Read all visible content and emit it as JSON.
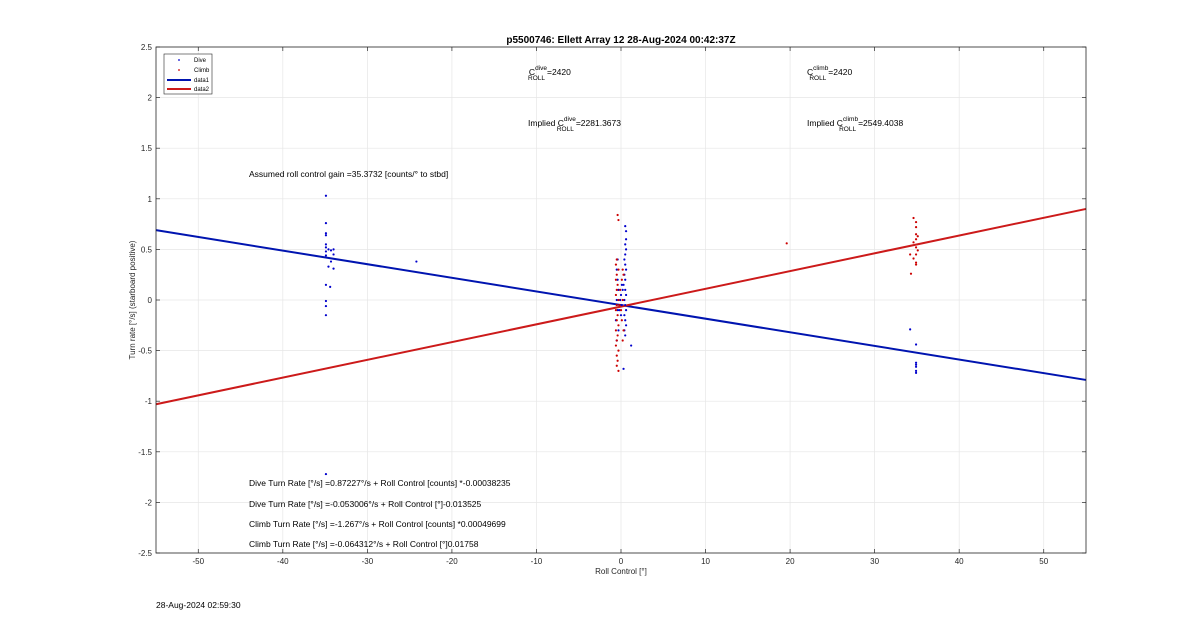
{
  "figure": {
    "footer_timestamp": "28-Aug-2024 02:59:30"
  },
  "colors": {
    "dive": "#0000cc",
    "climb": "#cc0000",
    "data1": "#0014b0",
    "data2": "#cc1a1a",
    "grid": "#e6e6e6",
    "axis": "#262626"
  },
  "chart_data": {
    "type": "scatter",
    "title": "p5500746: Ellett Array 12 28-Aug-2024 00:42:37Z",
    "xlabel": "Roll Control [°]",
    "ylabel": "Turn rate [°/s] (starboard positive)",
    "xlim": [
      -55,
      55
    ],
    "ylim": [
      -2.5,
      2.5
    ],
    "grid": true,
    "legend_position": "top-left",
    "x_ticks": [
      -50,
      -40,
      -30,
      -20,
      -10,
      0,
      10,
      20,
      30,
      40,
      50
    ],
    "y_ticks": [
      -2.5,
      -2,
      -1.5,
      -1,
      -0.5,
      0,
      0.5,
      1,
      1.5,
      2,
      2.5
    ],
    "x_tick_labels": [
      "-50",
      "-40",
      "-30",
      "-20",
      "-10",
      "0",
      "10",
      "20",
      "30",
      "40",
      "50"
    ],
    "y_tick_labels": [
      "-2.5",
      "-2",
      "-1.5",
      "-1",
      "-0.5",
      "0",
      "0.5",
      "1",
      "1.5",
      "2",
      "2.5"
    ],
    "legend": [
      {
        "label": "Dive",
        "kind": "marker",
        "color": "#0000cc"
      },
      {
        "label": "Climb",
        "kind": "marker",
        "color": "#cc0000"
      },
      {
        "label": "data1",
        "kind": "line",
        "color": "#0014b0"
      },
      {
        "label": "data2",
        "kind": "line",
        "color": "#cc1a1a"
      }
    ],
    "series": [
      {
        "name": "Dive",
        "kind": "scatter",
        "color": "#0000cc",
        "points": [
          [
            -34.9,
            1.03
          ],
          [
            -34.9,
            0.76
          ],
          [
            -34.9,
            0.66
          ],
          [
            -34.9,
            0.64
          ],
          [
            -34.9,
            0.55
          ],
          [
            -34.9,
            0.52
          ],
          [
            -34.9,
            0.48
          ],
          [
            -34.9,
            0.44
          ],
          [
            -34.6,
            0.5
          ],
          [
            -34.3,
            0.49
          ],
          [
            -34.0,
            0.5
          ],
          [
            -34.0,
            0.45
          ],
          [
            -34.3,
            0.38
          ],
          [
            -34.0,
            0.31
          ],
          [
            -34.6,
            0.33
          ],
          [
            -34.9,
            0.15
          ],
          [
            -34.4,
            0.13
          ],
          [
            -34.9,
            -0.01
          ],
          [
            -34.9,
            -0.06
          ],
          [
            -34.9,
            -0.15
          ],
          [
            -34.9,
            -1.72
          ],
          [
            -24.2,
            0.38
          ],
          [
            0.5,
            0.73
          ],
          [
            0.6,
            0.68
          ],
          [
            0.6,
            0.6
          ],
          [
            0.5,
            0.55
          ],
          [
            0.6,
            0.5
          ],
          [
            0.5,
            0.45
          ],
          [
            0.4,
            0.4
          ],
          [
            0.5,
            0.35
          ],
          [
            0.6,
            0.3
          ],
          [
            0.4,
            0.25
          ],
          [
            0.5,
            0.2
          ],
          [
            0.3,
            0.15
          ],
          [
            0.5,
            0.1
          ],
          [
            0.6,
            0.05
          ],
          [
            0.4,
            0.0
          ],
          [
            0.5,
            -0.05
          ],
          [
            0.6,
            -0.1
          ],
          [
            0.4,
            -0.15
          ],
          [
            0.5,
            -0.2
          ],
          [
            0.6,
            -0.25
          ],
          [
            0.4,
            -0.3
          ],
          [
            0.5,
            -0.35
          ],
          [
            -0.5,
            0.3
          ],
          [
            -0.4,
            0.2
          ],
          [
            -0.3,
            0.1
          ],
          [
            -0.5,
            0.0
          ],
          [
            -0.4,
            -0.1
          ],
          [
            -0.6,
            -0.2
          ],
          [
            -0.3,
            -0.3
          ],
          [
            -0.5,
            -0.4
          ],
          [
            0.0,
            0.05
          ],
          [
            0.1,
            -0.05
          ],
          [
            -0.1,
            0.0
          ],
          [
            0.2,
            0.1
          ],
          [
            -0.2,
            -0.1
          ],
          [
            0.1,
            0.15
          ],
          [
            0.0,
            -0.15
          ],
          [
            1.2,
            -0.45
          ],
          [
            0.3,
            -0.68
          ],
          [
            -0.4,
            0.4
          ],
          [
            34.2,
            -0.29
          ],
          [
            34.9,
            -0.44
          ],
          [
            34.9,
            -0.62
          ],
          [
            34.9,
            -0.64
          ],
          [
            34.9,
            -0.66
          ],
          [
            34.9,
            -0.7
          ],
          [
            34.9,
            -0.72
          ]
        ]
      },
      {
        "name": "Climb",
        "kind": "scatter",
        "color": "#cc0000",
        "points": [
          [
            -0.4,
            0.84
          ],
          [
            -0.3,
            0.79
          ],
          [
            -0.5,
            0.4
          ],
          [
            -0.6,
            0.35
          ],
          [
            -0.3,
            0.3
          ],
          [
            -0.5,
            0.25
          ],
          [
            -0.6,
            0.2
          ],
          [
            -0.4,
            0.15
          ],
          [
            -0.5,
            0.1
          ],
          [
            -0.6,
            0.05
          ],
          [
            -0.3,
            0.0
          ],
          [
            -0.5,
            -0.05
          ],
          [
            -0.6,
            -0.1
          ],
          [
            -0.4,
            -0.15
          ],
          [
            -0.5,
            -0.2
          ],
          [
            -0.3,
            -0.25
          ],
          [
            -0.6,
            -0.3
          ],
          [
            -0.4,
            -0.35
          ],
          [
            -0.5,
            -0.4
          ],
          [
            -0.6,
            -0.45
          ],
          [
            -0.3,
            -0.5
          ],
          [
            -0.5,
            -0.55
          ],
          [
            -0.4,
            -0.6
          ],
          [
            -0.5,
            -0.65
          ],
          [
            -0.3,
            -0.7
          ],
          [
            0.2,
            0.3
          ],
          [
            0.1,
            0.2
          ],
          [
            0.2,
            0.0
          ],
          [
            0.1,
            -0.2
          ],
          [
            0.2,
            -0.4
          ],
          [
            -0.1,
            0.1
          ],
          [
            -0.2,
            -0.05
          ],
          [
            0.0,
            -0.1
          ],
          [
            0.3,
            0.25
          ],
          [
            0.3,
            -0.3
          ],
          [
            19.6,
            0.56
          ],
          [
            34.6,
            0.81
          ],
          [
            34.9,
            0.77
          ],
          [
            34.9,
            0.72
          ],
          [
            34.9,
            0.65
          ],
          [
            35.1,
            0.63
          ],
          [
            34.9,
            0.6
          ],
          [
            34.6,
            0.57
          ],
          [
            34.9,
            0.52
          ],
          [
            35.1,
            0.49
          ],
          [
            34.9,
            0.45
          ],
          [
            34.6,
            0.41
          ],
          [
            34.9,
            0.37
          ],
          [
            34.9,
            0.35
          ],
          [
            34.2,
            0.45
          ],
          [
            34.3,
            0.26
          ]
        ]
      },
      {
        "name": "data1",
        "kind": "line",
        "color": "#0014b0",
        "x": [
          -55,
          55
        ],
        "y": [
          0.69,
          -0.79
        ]
      },
      {
        "name": "data2",
        "kind": "line",
        "color": "#cc1a1a",
        "x": [
          -55,
          55
        ],
        "y": [
          -1.03,
          0.9
        ]
      }
    ],
    "annotations": {
      "c_roll_dive_base": "C",
      "c_roll_dive_sup": "dive",
      "c_roll_dive_sub": "ROLL",
      "c_roll_dive_val": "=2420",
      "c_roll_climb_base": "C",
      "c_roll_climb_sup": "climb",
      "c_roll_climb_sub": "ROLL",
      "c_roll_climb_val": "=2420",
      "implied_dive_prefix": "Implied C",
      "implied_dive_sup": "dive",
      "implied_dive_sub": "ROLL",
      "implied_dive_val": "=2281.3673",
      "implied_climb_prefix": "Implied C",
      "implied_climb_sup": "climb",
      "implied_climb_sub": "ROLL",
      "implied_climb_val": "=2549.4038",
      "gain": "Assumed roll control gain =35.3732 [counts/° to stbd]",
      "eq1": "Dive Turn Rate [°/s] =0.87227°/s + Roll Control [counts] *-0.00038235",
      "eq2": "Dive Turn Rate [°/s] =-0.053006°/s + Roll Control [°]-0.013525",
      "eq3": "Climb Turn Rate [°/s] =-1.267°/s + Roll Control [counts] *0.00049699",
      "eq4": "Climb Turn Rate [°/s] =-0.064312°/s + Roll Control [°]0.01758"
    }
  }
}
